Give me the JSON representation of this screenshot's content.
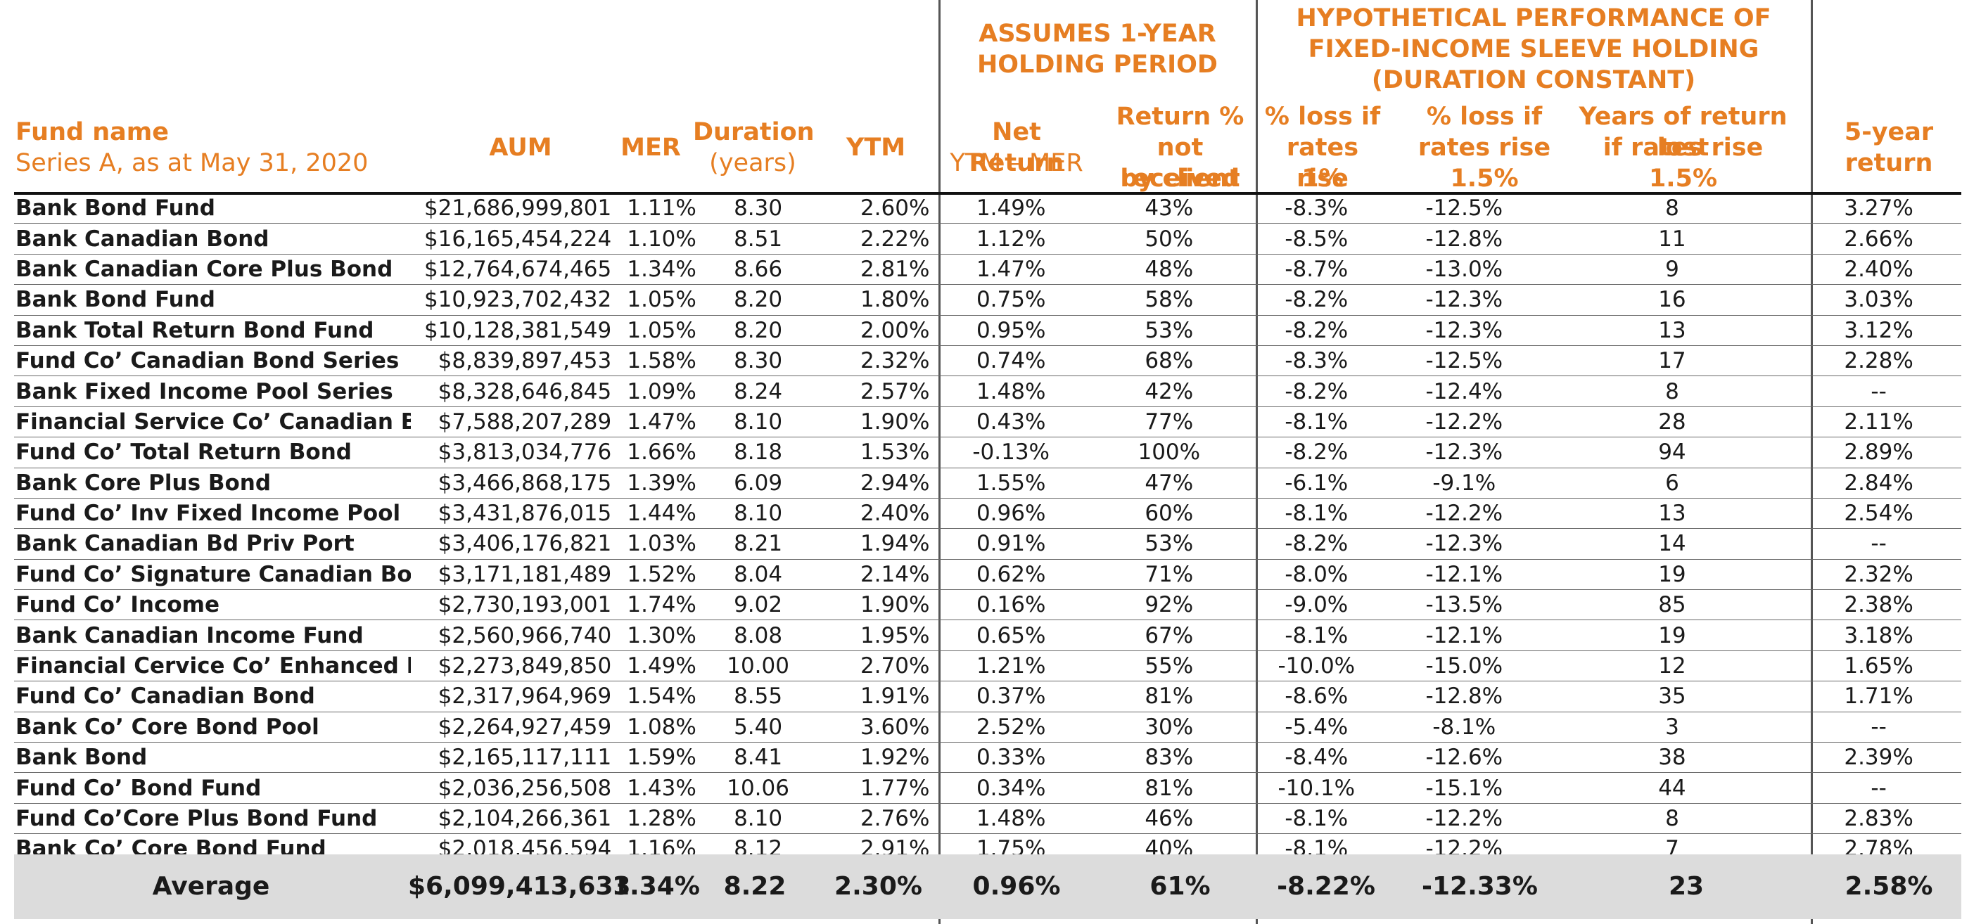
{
  "headers": {
    "fund_name": "Fund name",
    "fund_sub": "Series A, as at May 31, 2020",
    "aum": "AUM",
    "mer": "MER",
    "duration": "Duration",
    "duration_sub": "(years)",
    "ytm": "YTM",
    "group1_line1": "ASSUMES 1-YEAR",
    "group1_line2": "HOLDING PERIOD",
    "net_return": "Net Return",
    "net_return_sub": "YTM – MER",
    "ret_pct_1": "Return %",
    "ret_pct_2": "not received",
    "ret_pct_3": "by client",
    "group2_line1": "HYPOTHETICAL PERFORMANCE OF",
    "group2_line2": "FIXED-INCOME SLEEVE HOLDING",
    "group2_line3": "(DURATION  CONSTANT)",
    "loss1_1": "% loss if",
    "loss1_2": "rates rise",
    "loss1_3": "1%",
    "loss15_1": "% loss if",
    "loss15_2": "rates rise",
    "loss15_3": "1.5%",
    "years_1": "Years of return lost",
    "years_2": "if rates rise",
    "years_3": "1.5%",
    "five_1": "5-year",
    "five_2": "return"
  },
  "rows": [
    [
      "Bank Bond Fund",
      "$21,686,999,801",
      "1.11%",
      "8.30",
      "2.60%",
      "1.49%",
      "43%",
      "-8.3%",
      "-12.5%",
      "8",
      "3.27%"
    ],
    [
      "Bank Canadian Bond",
      "$16,165,454,224",
      "1.10%",
      "8.51",
      "2.22%",
      "1.12%",
      "50%",
      "-8.5%",
      "-12.8%",
      "11",
      "2.66%"
    ],
    [
      "Bank Canadian Core Plus Bond",
      "$12,764,674,465",
      "1.34%",
      "8.66",
      "2.81%",
      "1.47%",
      "48%",
      "-8.7%",
      "-13.0%",
      "9",
      "2.40%"
    ],
    [
      "Bank Bond Fund",
      "$10,923,702,432",
      "1.05%",
      "8.20",
      "1.80%",
      "0.75%",
      "58%",
      "-8.2%",
      "-12.3%",
      "16",
      "3.03%"
    ],
    [
      "Bank Total Return Bond Fund",
      "$10,128,381,549",
      "1.05%",
      "8.20",
      "2.00%",
      "0.95%",
      "53%",
      "-8.2%",
      "-12.3%",
      "13",
      "3.12%"
    ],
    [
      "Fund Co’ Canadian Bond Series",
      "$8,839,897,453",
      "1.58%",
      "8.30",
      "2.32%",
      "0.74%",
      "68%",
      "-8.3%",
      "-12.5%",
      "17",
      "2.28%"
    ],
    [
      "Bank Fixed Income Pool Series",
      "$8,328,646,845",
      "1.09%",
      "8.24",
      "2.57%",
      "1.48%",
      "42%",
      "-8.2%",
      "-12.4%",
      "8",
      "--"
    ],
    [
      "Financial Service Co’ Canadian Bond",
      "$7,588,207,289",
      "1.47%",
      "8.10",
      "1.90%",
      "0.43%",
      "77%",
      "-8.1%",
      "-12.2%",
      "28",
      "2.11%"
    ],
    [
      "Fund Co’ Total Return Bond",
      "$3,813,034,776",
      "1.66%",
      "8.18",
      "1.53%",
      "-0.13%",
      "100%",
      "-8.2%",
      "-12.3%",
      "94",
      "2.89%"
    ],
    [
      "Bank Core Plus Bond",
      "$3,466,868,175",
      "1.39%",
      "6.09",
      "2.94%",
      "1.55%",
      "47%",
      "-6.1%",
      "-9.1%",
      "6",
      "2.84%"
    ],
    [
      "Fund Co’ Inv Fixed Income Pool",
      "$3,431,876,015",
      "1.44%",
      "8.10",
      "2.40%",
      "0.96%",
      "60%",
      "-8.1%",
      "-12.2%",
      "13",
      "2.54%"
    ],
    [
      "Bank Canadian Bd Priv Port",
      "$3,406,176,821",
      "1.03%",
      "8.21",
      "1.94%",
      "0.91%",
      "53%",
      "-8.2%",
      "-12.3%",
      "14",
      "--"
    ],
    [
      "Fund Co’ Signature Canadian Bond",
      "$3,171,181,489",
      "1.52%",
      "8.04",
      "2.14%",
      "0.62%",
      "71%",
      "-8.0%",
      "-12.1%",
      "19",
      "2.32%"
    ],
    [
      "Fund Co’ Income",
      "$2,730,193,001",
      "1.74%",
      "9.02",
      "1.90%",
      "0.16%",
      "92%",
      "-9.0%",
      "-13.5%",
      "85",
      "2.38%"
    ],
    [
      "Bank Canadian Income Fund",
      "$2,560,966,740",
      "1.30%",
      "8.08",
      "1.95%",
      "0.65%",
      "67%",
      "-8.1%",
      "-12.1%",
      "19",
      "3.18%"
    ],
    [
      "Financial Cervice Co’ Enhanced Bond",
      "$2,273,849,850",
      "1.49%",
      "10.00",
      "2.70%",
      "1.21%",
      "55%",
      "-10.0%",
      "-15.0%",
      "12",
      "1.65%"
    ],
    [
      "Fund Co’ Canadian Bond",
      "$2,317,964,969",
      "1.54%",
      "8.55",
      "1.91%",
      "0.37%",
      "81%",
      "-8.6%",
      "-12.8%",
      "35",
      "1.71%"
    ],
    [
      "Bank Co’ Core Bond Pool",
      "$2,264,927,459",
      "1.08%",
      "5.40",
      "3.60%",
      "2.52%",
      "30%",
      "-5.4%",
      "-8.1%",
      "3",
      "--"
    ],
    [
      "Bank Bond",
      "$2,165,117,111",
      "1.59%",
      "8.41",
      "1.92%",
      "0.33%",
      "83%",
      "-8.4%",
      "-12.6%",
      "38",
      "2.39%"
    ],
    [
      "Fund Co’ Bond Fund",
      "$2,036,256,508",
      "1.43%",
      "10.06",
      "1.77%",
      "0.34%",
      "81%",
      "-10.1%",
      "-15.1%",
      "44",
      "--"
    ],
    [
      "Fund Co’Core Plus Bond Fund",
      "$2,104,266,361",
      "1.28%",
      "8.10",
      "2.76%",
      "1.48%",
      "46%",
      "-8.1%",
      "-12.2%",
      "8",
      "2.83%"
    ],
    [
      "Bank Co’ Core Bond Fund",
      "$2,018,456,594",
      "1.16%",
      "8.12",
      "2.91%",
      "1.75%",
      "40%",
      "-8.1%",
      "-12.2%",
      "7",
      "2.78%"
    ]
  ],
  "average": {
    "label": "Average",
    "aum": "$6,099,413,633",
    "mer": "1.34%",
    "duration": "8.22",
    "ytm": "2.30%",
    "net_return": "0.96%",
    "ret_pct": "61%",
    "loss1": "-8.22%",
    "loss15": "-12.33%",
    "years": "23",
    "five": "2.58%"
  },
  "colors": {
    "accent": "#e67e22",
    "average_bg": "#dcdcdc"
  }
}
